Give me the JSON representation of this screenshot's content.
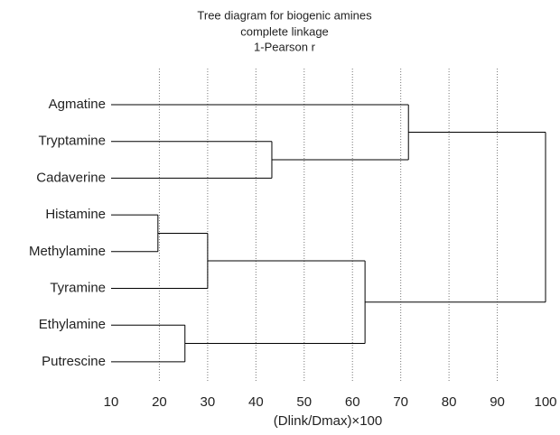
{
  "chart_data": {
    "type": "dendrogram",
    "title": [
      "Tree diagram for  biogenic amines",
      "complete linkage",
      "1-Pearson r"
    ],
    "xlabel": "(Dlink/Dmax)×100",
    "xlim": [
      10,
      100
    ],
    "xticks": [
      10,
      20,
      30,
      40,
      50,
      60,
      70,
      80,
      90,
      100
    ],
    "grid": true,
    "color": "#000000",
    "tree": {
      "height": 100,
      "children": [
        {
          "height": 71.6,
          "children": [
            {
              "label": "Agmatine"
            },
            {
              "height": 43.3,
              "children": [
                {
                  "label": "Tryptamine"
                },
                {
                  "label": "Cadaverine"
                }
              ]
            }
          ]
        },
        {
          "height": 62.6,
          "children": [
            {
              "height": 30.0,
              "children": [
                {
                  "height": 19.7,
                  "children": [
                    {
                      "label": "Histamine"
                    },
                    {
                      "label": "Methylamine"
                    }
                  ]
                },
                {
                  "label": "Tyramine"
                }
              ]
            },
            {
              "height": 25.3,
              "children": [
                {
                  "label": "Ethylamine"
                },
                {
                  "label": "Putrescine"
                }
              ]
            }
          ]
        }
      ]
    }
  }
}
